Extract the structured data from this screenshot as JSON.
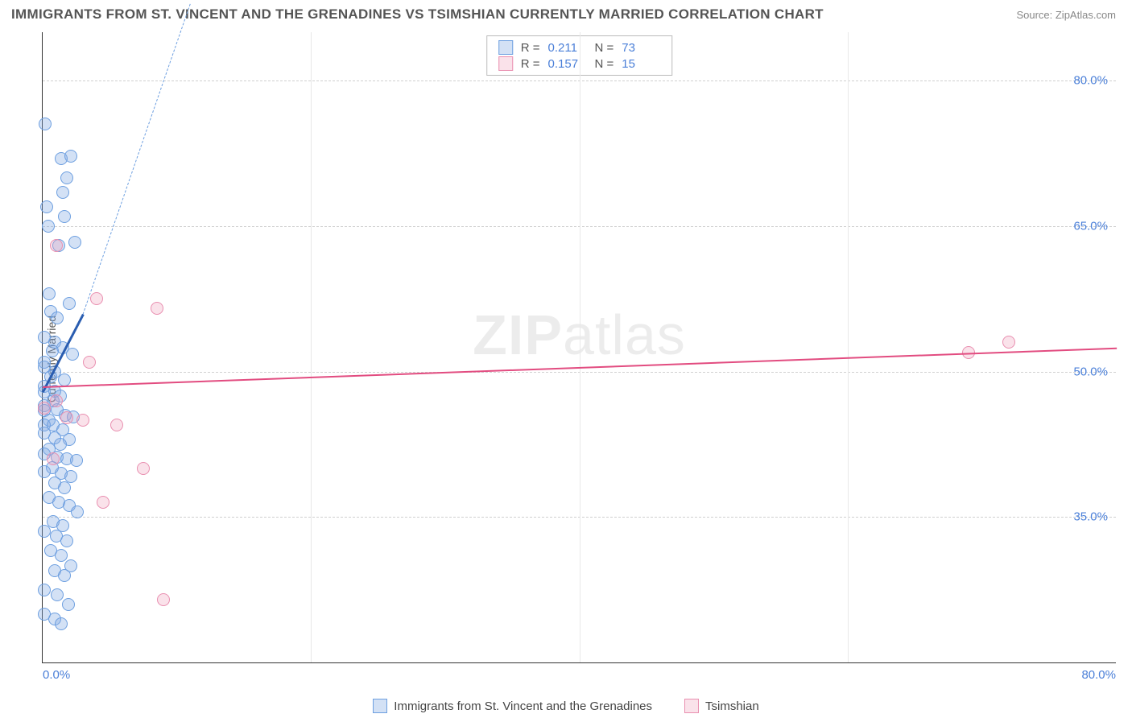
{
  "title": "IMMIGRANTS FROM ST. VINCENT AND THE GRENADINES VS TSIMSHIAN CURRENTLY MARRIED CORRELATION CHART",
  "source": "Source: ZipAtlas.com",
  "watermark": "ZIPatlas",
  "y_axis_label": "Currently Married",
  "chart": {
    "type": "scatter",
    "background_color": "#ffffff",
    "grid_color": "#d8d8d8",
    "axis_color": "#333333",
    "tick_label_color": "#4a7fd8",
    "xlim": [
      0,
      80
    ],
    "ylim": [
      20,
      85
    ],
    "x_ticks": [
      {
        "value": 0.0,
        "label": "0.0%"
      },
      {
        "value": 80.0,
        "label": "80.0%"
      }
    ],
    "x_minor_ticks": [
      20,
      40,
      60
    ],
    "y_ticks": [
      {
        "value": 35.0,
        "label": "35.0%"
      },
      {
        "value": 50.0,
        "label": "50.0%"
      },
      {
        "value": 65.0,
        "label": "65.0%"
      },
      {
        "value": 80.0,
        "label": "80.0%"
      }
    ],
    "series": [
      {
        "id": "s1",
        "name": "Immigrants from St. Vincent and the Grenadines",
        "legend_label": "Immigrants from St. Vincent and the Grenadines",
        "marker_fill": "rgba(130,170,225,0.35)",
        "marker_stroke": "#6d9fe0",
        "marker_size": 16,
        "r_value": "0.211",
        "n_value": "73",
        "trend": {
          "color": "#2a5db0",
          "width": 2.5,
          "x1": 0.0,
          "y1": 48.0,
          "x2": 3.0,
          "y2": 56.0,
          "dash_extend_to": {
            "x": 11.0,
            "y": 88.0
          }
        },
        "points": [
          {
            "x": 0.2,
            "y": 75.5
          },
          {
            "x": 1.4,
            "y": 72.0
          },
          {
            "x": 2.1,
            "y": 72.2
          },
          {
            "x": 1.8,
            "y": 70.0
          },
          {
            "x": 1.5,
            "y": 68.5
          },
          {
            "x": 0.3,
            "y": 67.0
          },
          {
            "x": 1.6,
            "y": 66.0
          },
          {
            "x": 0.4,
            "y": 65.0
          },
          {
            "x": 2.4,
            "y": 63.3
          },
          {
            "x": 1.2,
            "y": 63.0
          },
          {
            "x": 0.5,
            "y": 58.0
          },
          {
            "x": 2.0,
            "y": 57.0
          },
          {
            "x": 0.6,
            "y": 56.2
          },
          {
            "x": 1.1,
            "y": 55.5
          },
          {
            "x": 0.1,
            "y": 53.5
          },
          {
            "x": 0.9,
            "y": 53.0
          },
          {
            "x": 1.5,
            "y": 52.5
          },
          {
            "x": 0.7,
            "y": 52.1
          },
          {
            "x": 2.2,
            "y": 51.8
          },
          {
            "x": 0.1,
            "y": 51.0
          },
          {
            "x": 0.1,
            "y": 50.5
          },
          {
            "x": 0.9,
            "y": 50.0
          },
          {
            "x": 0.6,
            "y": 49.5
          },
          {
            "x": 1.6,
            "y": 49.1
          },
          {
            "x": 0.1,
            "y": 48.5
          },
          {
            "x": 0.1,
            "y": 47.9
          },
          {
            "x": 0.9,
            "y": 48.0
          },
          {
            "x": 1.3,
            "y": 47.5
          },
          {
            "x": 0.8,
            "y": 47.0
          },
          {
            "x": 0.1,
            "y": 46.5
          },
          {
            "x": 0.1,
            "y": 46.0
          },
          {
            "x": 1.1,
            "y": 46.1
          },
          {
            "x": 1.7,
            "y": 45.5
          },
          {
            "x": 2.3,
            "y": 45.3
          },
          {
            "x": 0.5,
            "y": 45.0
          },
          {
            "x": 0.1,
            "y": 44.5
          },
          {
            "x": 0.8,
            "y": 44.5
          },
          {
            "x": 1.5,
            "y": 44.0
          },
          {
            "x": 0.1,
            "y": 43.7
          },
          {
            "x": 0.9,
            "y": 43.2
          },
          {
            "x": 2.0,
            "y": 43.0
          },
          {
            "x": 1.3,
            "y": 42.5
          },
          {
            "x": 0.5,
            "y": 42.0
          },
          {
            "x": 0.1,
            "y": 41.5
          },
          {
            "x": 1.1,
            "y": 41.2
          },
          {
            "x": 1.8,
            "y": 41.0
          },
          {
            "x": 2.5,
            "y": 40.8
          },
          {
            "x": 0.7,
            "y": 40.1
          },
          {
            "x": 0.1,
            "y": 39.7
          },
          {
            "x": 1.4,
            "y": 39.5
          },
          {
            "x": 2.1,
            "y": 39.2
          },
          {
            "x": 0.9,
            "y": 38.5
          },
          {
            "x": 1.6,
            "y": 38.0
          },
          {
            "x": 0.5,
            "y": 37.0
          },
          {
            "x": 1.2,
            "y": 36.5
          },
          {
            "x": 2.0,
            "y": 36.2
          },
          {
            "x": 2.6,
            "y": 35.5
          },
          {
            "x": 0.8,
            "y": 34.5
          },
          {
            "x": 1.5,
            "y": 34.1
          },
          {
            "x": 0.1,
            "y": 33.5
          },
          {
            "x": 1.0,
            "y": 33.0
          },
          {
            "x": 1.8,
            "y": 32.5
          },
          {
            "x": 0.6,
            "y": 31.5
          },
          {
            "x": 1.4,
            "y": 31.0
          },
          {
            "x": 2.1,
            "y": 30.0
          },
          {
            "x": 0.9,
            "y": 29.5
          },
          {
            "x": 1.6,
            "y": 29.0
          },
          {
            "x": 0.1,
            "y": 27.5
          },
          {
            "x": 1.1,
            "y": 27.0
          },
          {
            "x": 1.9,
            "y": 26.0
          },
          {
            "x": 0.1,
            "y": 25.0
          },
          {
            "x": 0.9,
            "y": 24.5
          },
          {
            "x": 1.4,
            "y": 24.0
          }
        ]
      },
      {
        "id": "s2",
        "name": "Tsimshian",
        "legend_label": "Tsimshian",
        "marker_fill": "rgba(240,160,185,0.30)",
        "marker_stroke": "#e98fb0",
        "marker_size": 16,
        "r_value": "0.157",
        "n_value": "15",
        "trend": {
          "color": "#e24c80",
          "width": 2,
          "x1": 0.0,
          "y1": 48.5,
          "x2": 80.0,
          "y2": 52.5
        },
        "points": [
          {
            "x": 1.0,
            "y": 63.0
          },
          {
            "x": 4.0,
            "y": 57.5
          },
          {
            "x": 8.5,
            "y": 56.5
          },
          {
            "x": 3.5,
            "y": 51.0
          },
          {
            "x": 1.0,
            "y": 47.0
          },
          {
            "x": 0.1,
            "y": 46.2
          },
          {
            "x": 1.8,
            "y": 45.2
          },
          {
            "x": 3.0,
            "y": 45.0
          },
          {
            "x": 5.5,
            "y": 44.5
          },
          {
            "x": 0.8,
            "y": 41.0
          },
          {
            "x": 7.5,
            "y": 40.0
          },
          {
            "x": 4.5,
            "y": 36.5
          },
          {
            "x": 9.0,
            "y": 26.5
          },
          {
            "x": 69.0,
            "y": 52.0
          },
          {
            "x": 72.0,
            "y": 53.0
          }
        ]
      }
    ]
  },
  "legend_top": {
    "r_label": "R =",
    "n_label": "N ="
  }
}
